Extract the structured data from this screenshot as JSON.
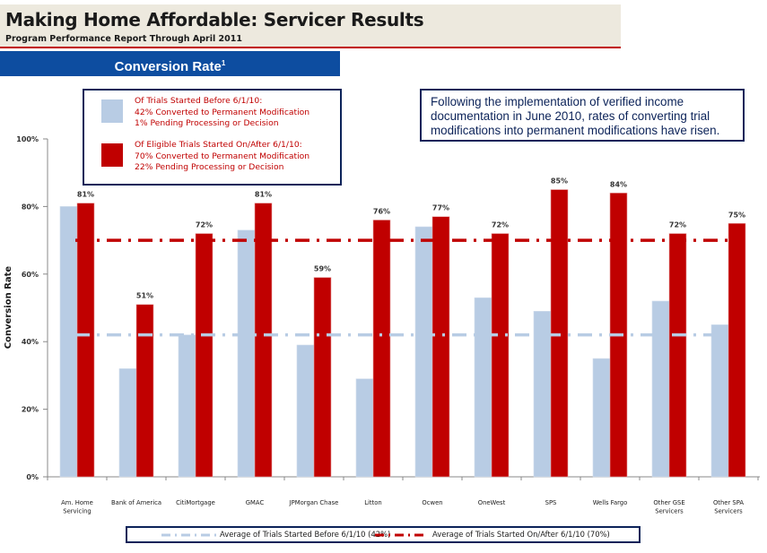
{
  "header": {
    "title": "Making Home Affordable: Servicer Results",
    "subtitle": "Program Performance Report Through April 2011"
  },
  "banner": {
    "title": "Conversion Rate",
    "footnote_marker": "1"
  },
  "colors": {
    "before": "#b8cce4",
    "after": "#c00000",
    "banner": "#0d4da0",
    "border": "#0c2359",
    "header_band": "#ede9de"
  },
  "legend": {
    "before": {
      "heading": "Of Trials Started Before 6/1/10:",
      "line1": "42% Converted to Permanent Modification",
      "line2": "1% Pending Processing or Decision"
    },
    "after": {
      "heading": "Of Eligible Trials Started On/After 6/1/10:",
      "line1": "70% Converted to Permanent  Modification",
      "line2": "22% Pending Processing or Decision"
    }
  },
  "note": "Following the implementation of verified income documentation in June 2010, rates of converting trial modifications into permanent modifications have risen.",
  "bottom_legend": {
    "before": "Average of Trials Started Before 6/1/10 (42%)",
    "after": "Average of Trials Started On/After 6/1/10 (70%)"
  },
  "chart_data": {
    "type": "bar",
    "title": "Conversion Rate",
    "xlabel": "",
    "ylabel": "Conversion Rate",
    "ylim": [
      0,
      100
    ],
    "yticks": [
      "0%",
      "20%",
      "40%",
      "60%",
      "80%",
      "100%"
    ],
    "grid": false,
    "categories": [
      [
        "Am. Home",
        "Servicing"
      ],
      [
        "Bank of America"
      ],
      [
        "CitiMortgage"
      ],
      [
        "GMAC"
      ],
      [
        "JPMorgan Chase"
      ],
      [
        "Litton"
      ],
      [
        "Ocwen"
      ],
      [
        "OneWest"
      ],
      [
        "SPS"
      ],
      [
        "Wells Fargo"
      ],
      [
        "Other GSE",
        "Servicers"
      ],
      [
        "Other SPA",
        "Servicers"
      ]
    ],
    "series": [
      {
        "name": "Trials Started Before 6/1/10",
        "values": [
          80,
          32,
          42,
          73,
          39,
          29,
          74,
          53,
          49,
          35,
          52,
          45
        ],
        "labeled": false
      },
      {
        "name": "Eligible Trials Started On/After 6/1/10",
        "values": [
          81,
          51,
          72,
          81,
          59,
          76,
          77,
          72,
          85,
          84,
          72,
          75
        ],
        "labels": [
          "81%",
          "51%",
          "72%",
          "81%",
          "59%",
          "76%",
          "77%",
          "72%",
          "85%",
          "84%",
          "72%",
          "75%"
        ],
        "labeled": true
      }
    ],
    "reference_lines": [
      {
        "name": "Average of Trials Started Before 6/1/10",
        "value": 42,
        "style": "dash-dot",
        "color": "#b8cce4"
      },
      {
        "name": "Average of Trials Started On/After 6/1/10",
        "value": 70,
        "style": "dash-dot",
        "color": "#c00000"
      }
    ],
    "legend_position": "bottom"
  }
}
